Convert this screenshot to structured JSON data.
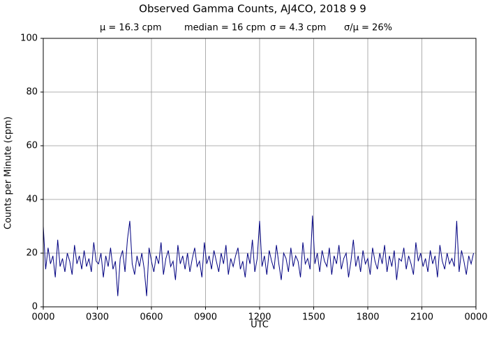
{
  "chart_data": {
    "type": "line",
    "title": "Observed Gamma Counts, AJ4CO, 2018 9 9",
    "stats": [
      "μ = 16.3 cpm",
      "median = 16 cpm",
      "σ = 4.3 cpm",
      "σ/μ = 26%"
    ],
    "x_label": "UTC",
    "y_label": "Counts per Minute (cpm)",
    "color": "#000080",
    "grid": true,
    "xlim": [
      0,
      1440
    ],
    "xticks": [
      {
        "value": 0,
        "label": "0000"
      },
      {
        "value": 180,
        "label": "0300"
      },
      {
        "value": 360,
        "label": "0600"
      },
      {
        "value": 540,
        "label": "0900"
      },
      {
        "value": 720,
        "label": "1200"
      },
      {
        "value": 900,
        "label": "1500"
      },
      {
        "value": 1080,
        "label": "1800"
      },
      {
        "value": 1260,
        "label": "2100"
      },
      {
        "value": 1440,
        "label": "0000"
      }
    ],
    "ylim": [
      0,
      100
    ],
    "yticks": [
      0,
      20,
      40,
      60,
      80,
      100
    ],
    "x": [
      0,
      8,
      16,
      24,
      32,
      40,
      48,
      56,
      64,
      72,
      80,
      88,
      96,
      104,
      112,
      120,
      128,
      136,
      144,
      152,
      160,
      168,
      176,
      184,
      192,
      200,
      208,
      216,
      224,
      232,
      240,
      248,
      256,
      264,
      272,
      280,
      288,
      296,
      304,
      312,
      320,
      328,
      336,
      344,
      352,
      360,
      368,
      376,
      384,
      392,
      400,
      408,
      416,
      424,
      432,
      440,
      448,
      456,
      464,
      472,
      480,
      488,
      496,
      504,
      512,
      520,
      528,
      536,
      544,
      552,
      560,
      568,
      576,
      584,
      592,
      600,
      608,
      616,
      624,
      632,
      640,
      648,
      656,
      664,
      672,
      680,
      688,
      696,
      704,
      712,
      720,
      728,
      736,
      744,
      752,
      760,
      768,
      776,
      784,
      792,
      800,
      808,
      816,
      824,
      832,
      840,
      848,
      856,
      864,
      872,
      880,
      888,
      896,
      904,
      912,
      920,
      928,
      936,
      944,
      952,
      960,
      968,
      976,
      984,
      992,
      1000,
      1008,
      1016,
      1024,
      1032,
      1040,
      1048,
      1056,
      1064,
      1072,
      1080,
      1088,
      1096,
      1104,
      1112,
      1120,
      1128,
      1136,
      1144,
      1152,
      1160,
      1168,
      1176,
      1184,
      1192,
      1200,
      1208,
      1216,
      1224,
      1232,
      1240,
      1248,
      1256,
      1264,
      1272,
      1280,
      1288,
      1296,
      1304,
      1312,
      1320,
      1328,
      1336,
      1344,
      1352,
      1360,
      1368,
      1376,
      1384,
      1392,
      1400,
      1408,
      1416,
      1424,
      1432
    ],
    "values": [
      30,
      14,
      22,
      16,
      19,
      11,
      25,
      15,
      18,
      13,
      20,
      17,
      12,
      23,
      16,
      19,
      14,
      21,
      15,
      18,
      13,
      24,
      17,
      16,
      20,
      11,
      19,
      15,
      22,
      14,
      17,
      4,
      18,
      21,
      13,
      25,
      32,
      16,
      12,
      19,
      15,
      20,
      14,
      4,
      22,
      17,
      13,
      19,
      16,
      24,
      12,
      18,
      21,
      15,
      17,
      10,
      23,
      16,
      19,
      14,
      20,
      13,
      18,
      22,
      15,
      17,
      11,
      24,
      16,
      19,
      14,
      21,
      17,
      13,
      20,
      16,
      23,
      12,
      18,
      15,
      19,
      22,
      14,
      17,
      11,
      20,
      16,
      25,
      13,
      18,
      32,
      15,
      19,
      12,
      21,
      17,
      14,
      23,
      16,
      10,
      20,
      18,
      13,
      22,
      15,
      19,
      17,
      11,
      24,
      16,
      18,
      14,
      34,
      16,
      20,
      13,
      21,
      17,
      15,
      22,
      12,
      19,
      16,
      23,
      14,
      18,
      20,
      11,
      17,
      25,
      15,
      19,
      13,
      21,
      16,
      18,
      12,
      22,
      17,
      14,
      20,
      16,
      23,
      13,
      19,
      15,
      21,
      10,
      18,
      17,
      22,
      14,
      19,
      16,
      12,
      24,
      17,
      20,
      15,
      18,
      13,
      21,
      16,
      19,
      11,
      23,
      17,
      14,
      20,
      16,
      18,
      15,
      32,
      13,
      21,
      17,
      12,
      19,
      16,
      20
    ]
  }
}
